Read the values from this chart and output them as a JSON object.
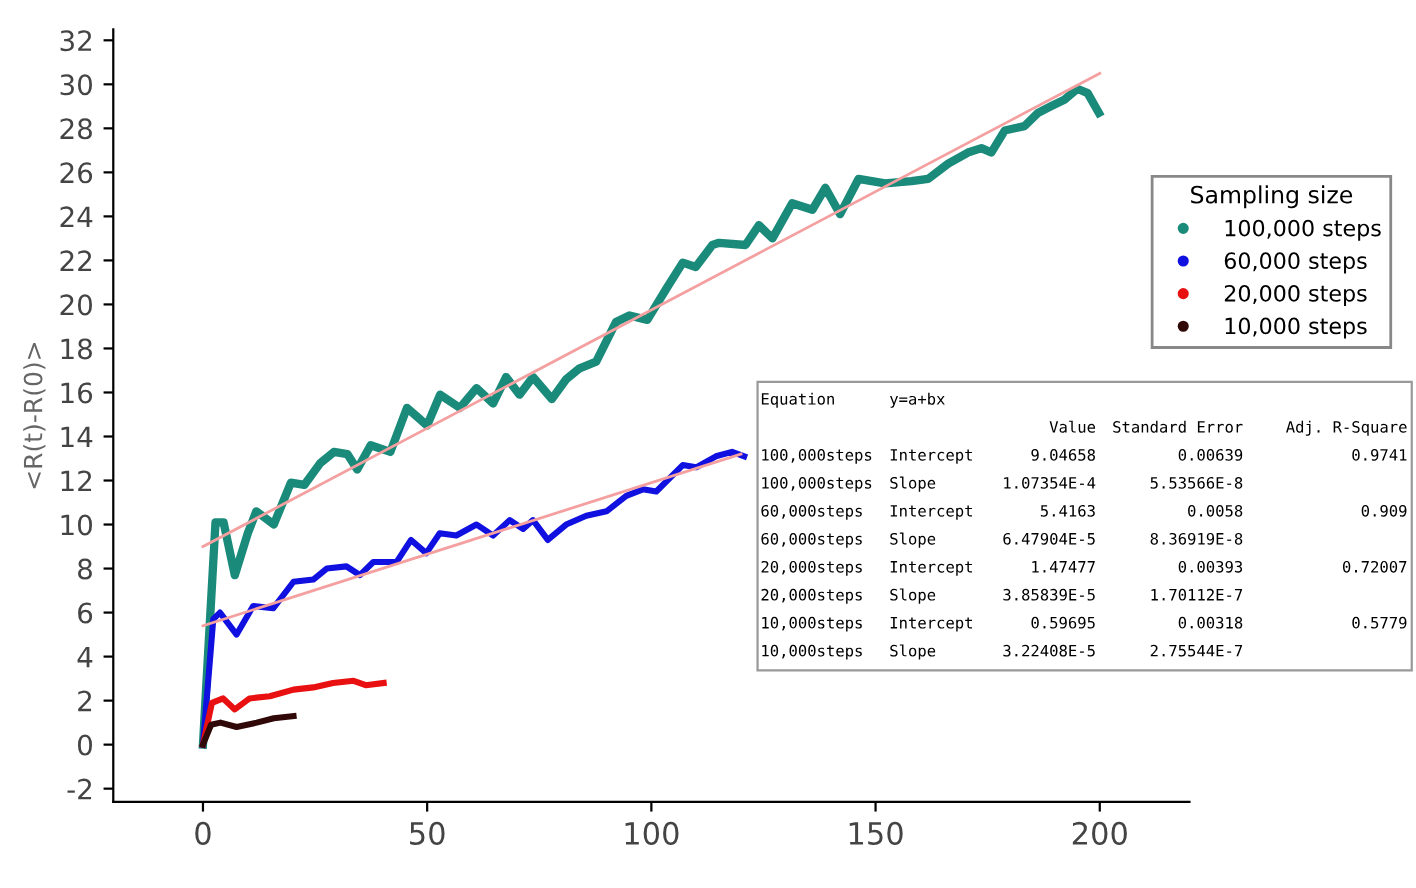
{
  "chart_data": {
    "type": "line",
    "ylabel": "<R(t)-R(0)>",
    "legend_title": "Sampling size",
    "legend": "right",
    "grid": false,
    "xlim": [
      -20,
      220
    ],
    "ylim": [
      -2.6,
      32.5
    ],
    "xticks": [
      0,
      50,
      100,
      150,
      200
    ],
    "yticks": [
      -2,
      0,
      2,
      4,
      6,
      8,
      10,
      12,
      14,
      16,
      18,
      20,
      22,
      24,
      26,
      28,
      30,
      32
    ],
    "series": [
      {
        "name": "100,000 steps",
        "color": "#1a8a7a",
        "x": [
          0,
          2.8,
          4.6,
          7.1,
          10,
          11.9,
          15.8,
          19.6,
          22.6,
          26.2,
          29.2,
          32.2,
          34.4,
          37.4,
          41.8,
          45.5,
          50,
          52.9,
          57.3,
          61,
          64.7,
          67.6,
          70.6,
          73.6,
          77.8,
          81,
          84,
          87.7,
          92.1,
          95.1,
          99.1,
          103.3,
          107,
          109.9,
          113.6,
          115.1,
          121,
          124,
          127,
          131.4,
          135.9,
          138.8,
          142.1,
          146.2,
          152.1,
          158,
          161.7,
          166.2,
          170.6,
          173.6,
          175.8,
          178.8,
          183.2,
          186.2,
          189.1,
          192.1,
          195,
          197.3,
          199.8
        ],
        "values": [
          0,
          10.1,
          10.1,
          7.7,
          9.6,
          10.6,
          10.0,
          11.9,
          11.8,
          12.8,
          13.3,
          13.2,
          12.5,
          13.6,
          13.3,
          15.3,
          14.5,
          15.9,
          15.3,
          16.2,
          15.5,
          16.7,
          15.9,
          16.7,
          15.7,
          16.6,
          17.1,
          17.4,
          19.2,
          19.5,
          19.3,
          20.7,
          21.9,
          21.7,
          22.7,
          22.8,
          22.7,
          23.6,
          23.0,
          24.6,
          24.3,
          25.3,
          24.1,
          25.7,
          25.5,
          25.6,
          25.7,
          26.4,
          26.9,
          27.1,
          26.9,
          27.9,
          28.1,
          28.7,
          29.0,
          29.3,
          29.8,
          29.6,
          28.7
        ]
      },
      {
        "name": "60,000 steps",
        "color": "#1010e0",
        "x": [
          0,
          2.3,
          3.8,
          7.5,
          11.2,
          15.7,
          20.2,
          24.6,
          27.6,
          32,
          35,
          38,
          43.2,
          46.4,
          49.8,
          52.8,
          56.5,
          61,
          64.7,
          68.4,
          71.4,
          73.6,
          76.9,
          81,
          85.5,
          90,
          94.4,
          98.1,
          101.1,
          107,
          110,
          114.4,
          118,
          120.7
        ],
        "values": [
          0,
          5.7,
          6.0,
          5.0,
          6.3,
          6.2,
          7.4,
          7.5,
          8.0,
          8.1,
          7.7,
          8.3,
          8.3,
          9.3,
          8.7,
          9.6,
          9.5,
          10.0,
          9.5,
          10.2,
          9.8,
          10.2,
          9.3,
          10.0,
          10.4,
          10.6,
          11.3,
          11.6,
          11.5,
          12.7,
          12.6,
          13.1,
          13.3,
          13.1
        ]
      },
      {
        "name": "20,000 steps",
        "color": "#e81010",
        "x": [
          0,
          2,
          4.5,
          7.1,
          10.4,
          14.9,
          20.2,
          24.6,
          29,
          33.6,
          36.3,
          40.3
        ],
        "values": [
          0,
          1.9,
          2.1,
          1.6,
          2.1,
          2.2,
          2.5,
          2.6,
          2.8,
          2.9,
          2.7,
          2.8
        ]
      },
      {
        "name": "10,000 steps",
        "color": "#300808",
        "x": [
          0,
          1.8,
          3.9,
          7.5,
          12,
          15.8,
          20.2
        ],
        "values": [
          0,
          0.9,
          1.0,
          0.8,
          1.0,
          1.2,
          1.3
        ]
      },
      {
        "type": "line",
        "color": "#f4a0a0",
        "x": [
          0,
          200
        ],
        "values": [
          9.0,
          30.5
        ]
      },
      {
        "type": "line",
        "color": "#f4a0a0",
        "x": [
          0,
          120
        ],
        "values": [
          5.4,
          13.2
        ]
      }
    ],
    "annotations": [
      "Equation\ty=a+bx\t\t\t",
      "\t\tValue\tStandard Error\tAdj. R-Square",
      "100,000steps\tIntercept\t9.04658\t0.00639\t0.9741",
      "100,000steps\tSlope\t1.07354E-4\t5.53566E-8\t",
      "60,000steps\tIntercept\t5.4163\t0.0058\t0.909",
      "60,000steps\tSlope\t6.47904E-5\t8.36919E-8\t",
      "20,000steps\tIntercept\t1.47477\t0.00393\t0.72007",
      "20,000steps\tSlope\t3.85839E-5\t1.70112E-7\t",
      "10,000steps\tIntercept\t0.59695\t0.00318\t0.5779",
      "10,000steps\tSlope\t3.22408E-5\t2.75544E-7\t"
    ]
  }
}
